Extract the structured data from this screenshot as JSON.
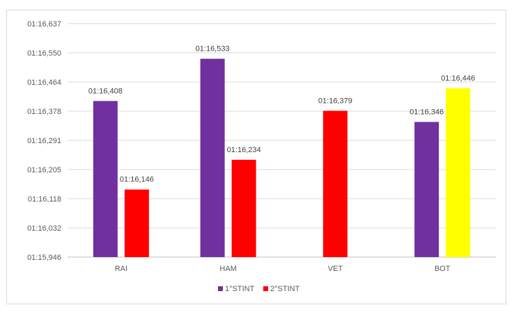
{
  "chart_data": {
    "type": "bar",
    "categories": [
      "RAI",
      "HAM",
      "VET",
      "BOT"
    ],
    "y_tick_labels": [
      "01:15,946",
      "01:16,032",
      "01:16,118",
      "01:16,205",
      "01:16,291",
      "01:16,378",
      "01:16,464",
      "01:16,550",
      "01:16,637"
    ],
    "ylim_seconds": [
      75.946,
      76.637
    ],
    "grid": true,
    "legend_position": "bottom",
    "legend": [
      {
        "name": "1°STINT",
        "color": "#7030a0"
      },
      {
        "name": "2°STINT",
        "color": "#ff0000"
      }
    ],
    "bars": [
      {
        "category": "RAI",
        "series": "1°STINT",
        "value_seconds": 76.408,
        "label": "01:16,408",
        "color": "#7030a0"
      },
      {
        "category": "RAI",
        "series": "2°STINT",
        "value_seconds": 76.146,
        "label": "01:16,146",
        "color": "#ff0000"
      },
      {
        "category": "HAM",
        "series": "1°STINT",
        "value_seconds": 76.533,
        "label": "01:16,533",
        "color": "#7030a0"
      },
      {
        "category": "HAM",
        "series": "2°STINT",
        "value_seconds": 76.234,
        "label": "01:16,234",
        "color": "#ff0000"
      },
      {
        "category": "VET",
        "series": "2°STINT",
        "value_seconds": 76.379,
        "label": "01:16,379",
        "color": "#ff0000"
      },
      {
        "category": "BOT",
        "series": "1°STINT",
        "value_seconds": 76.346,
        "label": "01:16,346",
        "color": "#7030a0"
      },
      {
        "category": "BOT",
        "series": "2°STINT",
        "value_seconds": 76.446,
        "label": "01:16,446",
        "color": "#ffff00"
      }
    ]
  }
}
